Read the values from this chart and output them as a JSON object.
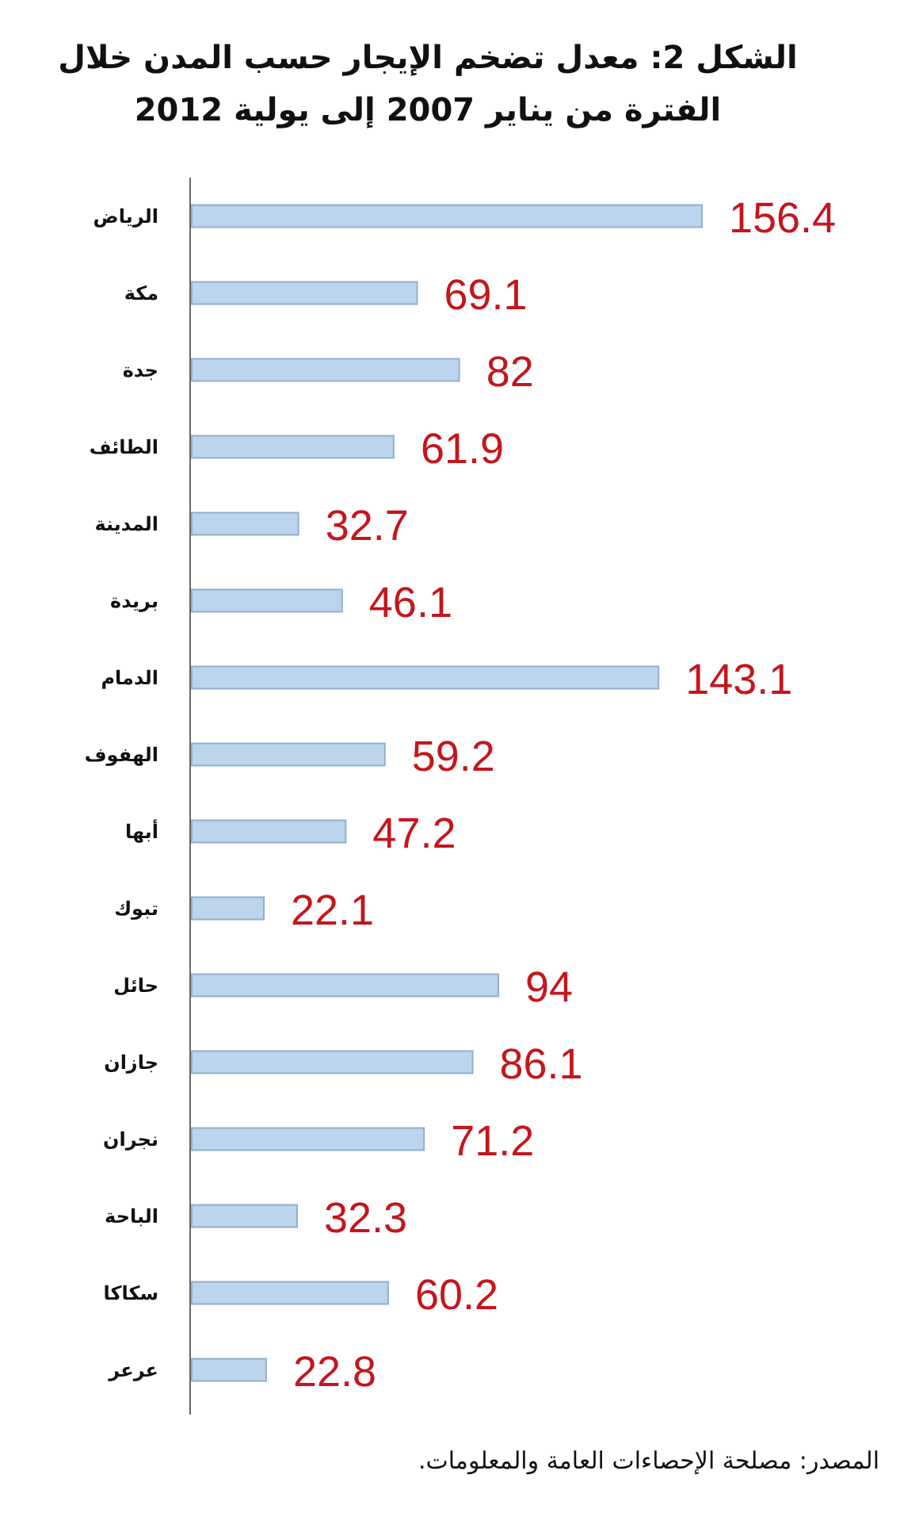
{
  "chart_data": {
    "type": "bar",
    "orientation": "horizontal",
    "title": "الشكل 2: معدل تضخم الإيجار حسب المدن خلال الفترة من يناير 2007 إلى يولية 2012",
    "categories": [
      "الرياض",
      "مكة",
      "جدة",
      "الطائف",
      "المدينة",
      "بريدة",
      "الدمام",
      "الهفوف",
      "أبها",
      "تبوك",
      "حائل",
      "جازان",
      "نجران",
      "الباحة",
      "سكاكا",
      "عرعر"
    ],
    "values": [
      156.4,
      69.1,
      82,
      61.9,
      32.7,
      46.1,
      143.1,
      59.2,
      47.2,
      22.1,
      94,
      86.1,
      71.2,
      32.3,
      60.2,
      22.8
    ],
    "color": "#bcd5ec",
    "data_labels": true,
    "annotations": [
      "المصدر: مصلحة الإحصاءات العامة والمعلومات."
    ]
  }
}
